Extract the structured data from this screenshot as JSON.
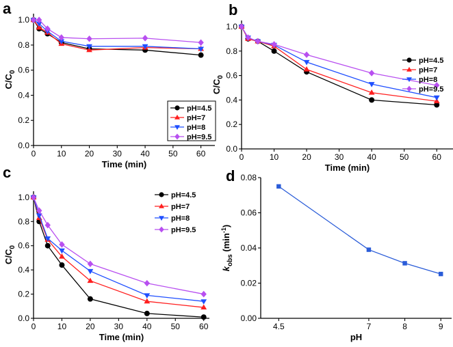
{
  "chart_data": [
    {
      "panel": "a",
      "type": "line",
      "x": [
        0,
        2,
        5,
        10,
        20,
        40,
        60
      ],
      "xlim": [
        0,
        65
      ],
      "ylim": [
        0,
        1.05
      ],
      "xticks": [
        "0",
        "10",
        "20",
        "30",
        "40",
        "50",
        "60"
      ],
      "yticks": [
        "0.0",
        "0.2",
        "0.4",
        "0.6",
        "0.8",
        "1.0"
      ],
      "xlabel": "Time (min)",
      "ylabel_main": "C/C",
      "ylabel_sub": "0",
      "legend_position": "bottom-right",
      "series": [
        {
          "name": "pH=4.5",
          "color": "#000000",
          "marker": "circle",
          "values": [
            1.0,
            0.93,
            0.89,
            0.82,
            0.77,
            0.76,
            0.72
          ]
        },
        {
          "name": "pH=7",
          "color": "#ff1f1f",
          "marker": "triangle-up",
          "values": [
            1.0,
            0.94,
            0.9,
            0.81,
            0.76,
            0.78,
            0.77
          ]
        },
        {
          "name": "pH=8",
          "color": "#1f4fff",
          "marker": "triangle-down",
          "values": [
            1.0,
            0.97,
            0.91,
            0.83,
            0.79,
            0.79,
            0.77
          ]
        },
        {
          "name": "pH=9.5",
          "color": "#b84ff0",
          "marker": "diamond",
          "values": [
            1.0,
            1.0,
            0.93,
            0.86,
            0.85,
            0.855,
            0.82
          ]
        }
      ]
    },
    {
      "panel": "b",
      "type": "line",
      "x": [
        0,
        2,
        5,
        10,
        20,
        40,
        60
      ],
      "xlim": [
        0,
        65
      ],
      "ylim": [
        0,
        1.05
      ],
      "xticks": [
        "0",
        "10",
        "20",
        "30",
        "40",
        "50",
        "60"
      ],
      "yticks": [
        "0.0",
        "0.2",
        "0.4",
        "0.6",
        "0.8",
        "1.0"
      ],
      "xlabel": "Time (min)",
      "ylabel_main": "C/C",
      "ylabel_sub": "0",
      "legend_position": "top-right",
      "series": [
        {
          "name": "pH=4.5",
          "color": "#000000",
          "marker": "circle",
          "values": [
            1.0,
            0.9,
            0.88,
            0.8,
            0.63,
            0.4,
            0.36
          ]
        },
        {
          "name": "pH=7",
          "color": "#ff1f1f",
          "marker": "triangle-up",
          "values": [
            1.0,
            0.9,
            0.88,
            0.84,
            0.65,
            0.46,
            0.39
          ]
        },
        {
          "name": "pH=8",
          "color": "#1f4fff",
          "marker": "triangle-down",
          "values": [
            1.0,
            0.91,
            0.88,
            0.85,
            0.71,
            0.53,
            0.42
          ]
        },
        {
          "name": "pH=9.5",
          "color": "#b84ff0",
          "marker": "diamond",
          "values": [
            1.0,
            0.91,
            0.88,
            0.855,
            0.77,
            0.62,
            0.52
          ]
        }
      ]
    },
    {
      "panel": "c",
      "type": "line",
      "x": [
        0,
        2,
        5,
        10,
        20,
        40,
        60
      ],
      "xlim": [
        0,
        62
      ],
      "ylim": [
        0,
        1.05
      ],
      "xticks": [
        "0",
        "10",
        "20",
        "30",
        "40",
        "50",
        "60"
      ],
      "yticks": [
        "0.0",
        "0.2",
        "0.4",
        "0.6",
        "0.8",
        "1.0"
      ],
      "xlabel": "Time (min)",
      "ylabel_main": "C/C",
      "ylabel_sub": "0",
      "legend_position": "top-right",
      "series": [
        {
          "name": "pH=4.5",
          "color": "#000000",
          "marker": "circle",
          "values": [
            1.0,
            0.8,
            0.6,
            0.44,
            0.16,
            0.04,
            0.01
          ]
        },
        {
          "name": "pH=7",
          "color": "#ff1f1f",
          "marker": "triangle-up",
          "values": [
            1.0,
            0.83,
            0.65,
            0.51,
            0.31,
            0.14,
            0.09
          ]
        },
        {
          "name": "pH=8",
          "color": "#1f4fff",
          "marker": "triangle-down",
          "values": [
            1.0,
            0.85,
            0.66,
            0.56,
            0.39,
            0.19,
            0.14
          ]
        },
        {
          "name": "pH=9.5",
          "color": "#b84ff0",
          "marker": "diamond",
          "values": [
            1.0,
            0.89,
            0.77,
            0.61,
            0.45,
            0.29,
            0.2
          ]
        }
      ]
    },
    {
      "panel": "d",
      "type": "line",
      "categories": [
        "4.5",
        "7",
        "8",
        "9"
      ],
      "x": [
        4.5,
        7,
        8,
        9
      ],
      "xlim": [
        4.0,
        9.3
      ],
      "ylim": [
        0,
        0.08
      ],
      "xticks": [
        "4.5",
        "7",
        "8",
        "9"
      ],
      "yticks": [
        "0.00",
        "0.02",
        "0.04",
        "0.06",
        "0.08"
      ],
      "xlabel": "pH",
      "ylabel_main": "k",
      "ylabel_sub": "obs",
      "ylabel_unit": "(min",
      "ylabel_sup": "-1",
      "ylabel_close": ")",
      "series": [
        {
          "name": "kobs",
          "color": "#2a5cd8",
          "marker": "square",
          "values": [
            0.075,
            0.039,
            0.0313,
            0.0252
          ]
        }
      ]
    }
  ],
  "panel_labels": [
    "a",
    "b",
    "c",
    "d"
  ]
}
